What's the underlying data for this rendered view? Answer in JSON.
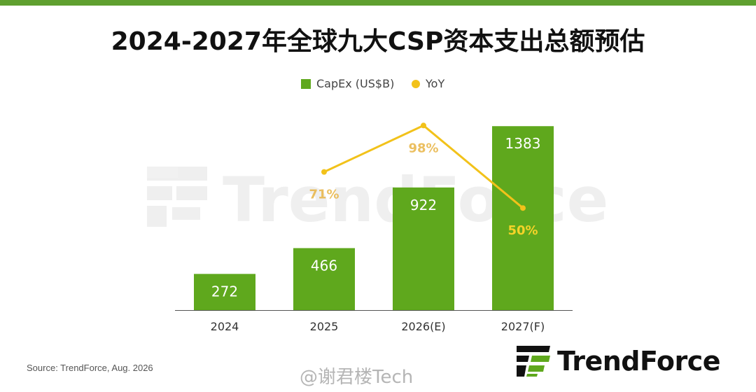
{
  "title": "2024-2027年全球九大CSP资本支出总额预估",
  "legend": {
    "capex": "CapEx (US$B)",
    "yoy": "YoY"
  },
  "colors": {
    "bar": "#5fa81d",
    "line": "#f2c21a",
    "top_bar": "#5fa02f"
  },
  "chart_data": {
    "type": "bar",
    "title": "2024-2027年全球九大CSP资本支出总额预估",
    "categories": [
      "2024",
      "2025",
      "2026(E)",
      "2027(F)"
    ],
    "series": [
      {
        "name": "CapEx (US$B)",
        "type": "bar",
        "values": [
          272,
          466,
          922,
          1383
        ],
        "labels": [
          "272",
          "466",
          "922",
          "1383"
        ]
      },
      {
        "name": "YoY",
        "type": "line",
        "values": [
          null,
          71,
          98,
          50
        ],
        "labels": [
          "",
          "71%",
          "98%",
          "50%"
        ]
      }
    ],
    "ylim": [
      0,
      1500
    ],
    "legend_position": "top-center",
    "grid": false
  },
  "watermark": "TrendForce",
  "source": "Source: TrendForce, Aug. 2026",
  "weibo_tag": "@谢君楼Tech",
  "logo": {
    "text": "TrendForce"
  }
}
